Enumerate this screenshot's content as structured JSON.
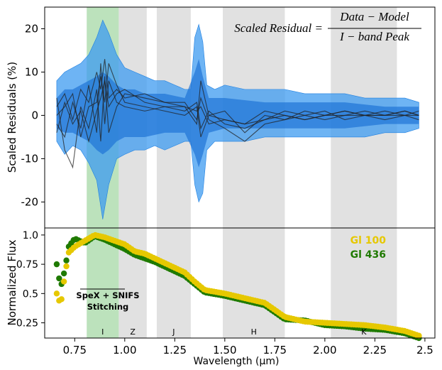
{
  "chart_data": [
    {
      "type": "area",
      "ylabel": "Scaled Residuals (%)",
      "xlim": [
        0.6,
        2.55
      ],
      "ylim": [
        -26,
        25
      ],
      "yticks": [
        20,
        10,
        0,
        -10,
        -20
      ],
      "ytick_labels": [
        "20",
        "10",
        "0",
        "-10",
        "-20"
      ],
      "annotation": {
        "lhs": "Scaled Residual =",
        "numerator": "Data − Model",
        "denominator": "I − band Peak"
      },
      "bands_gray": [
        [
          0.97,
          1.11
        ],
        [
          1.16,
          1.33
        ],
        [
          1.49,
          1.8
        ],
        [
          2.03,
          2.36
        ]
      ],
      "band_green": [
        0.81,
        0.97
      ],
      "envelope_outer": [
        {
          "x": 0.66,
          "lo": -6,
          "hi": 8
        },
        {
          "x": 0.7,
          "lo": -9,
          "hi": 10
        },
        {
          "x": 0.74,
          "lo": -7,
          "hi": 11
        },
        {
          "x": 0.78,
          "lo": -8,
          "hi": 12
        },
        {
          "x": 0.82,
          "lo": -11,
          "hi": 14
        },
        {
          "x": 0.86,
          "lo": -15,
          "hi": 18
        },
        {
          "x": 0.89,
          "lo": -24,
          "hi": 22
        },
        {
          "x": 0.92,
          "lo": -16,
          "hi": 19
        },
        {
          "x": 0.96,
          "lo": -10,
          "hi": 14
        },
        {
          "x": 1.0,
          "lo": -9,
          "hi": 11
        },
        {
          "x": 1.05,
          "lo": -8,
          "hi": 10
        },
        {
          "x": 1.1,
          "lo": -8,
          "hi": 9
        },
        {
          "x": 1.15,
          "lo": -7,
          "hi": 8
        },
        {
          "x": 1.2,
          "lo": -8,
          "hi": 8
        },
        {
          "x": 1.25,
          "lo": -7,
          "hi": 7
        },
        {
          "x": 1.3,
          "lo": -6,
          "hi": 6
        },
        {
          "x": 1.33,
          "lo": -6,
          "hi": 6
        },
        {
          "x": 1.35,
          "lo": -16,
          "hi": 18
        },
        {
          "x": 1.37,
          "lo": -20,
          "hi": 21
        },
        {
          "x": 1.39,
          "lo": -18,
          "hi": 17
        },
        {
          "x": 1.41,
          "lo": -8,
          "hi": 7
        },
        {
          "x": 1.45,
          "lo": -6,
          "hi": 6
        },
        {
          "x": 1.5,
          "lo": -6,
          "hi": 7
        },
        {
          "x": 1.6,
          "lo": -6,
          "hi": 6
        },
        {
          "x": 1.7,
          "lo": -5,
          "hi": 6
        },
        {
          "x": 1.8,
          "lo": -5,
          "hi": 6
        },
        {
          "x": 1.9,
          "lo": -5,
          "hi": 5
        },
        {
          "x": 2.0,
          "lo": -5,
          "hi": 5
        },
        {
          "x": 2.1,
          "lo": -5,
          "hi": 5
        },
        {
          "x": 2.2,
          "lo": -5,
          "hi": 4
        },
        {
          "x": 2.3,
          "lo": -4,
          "hi": 4
        },
        {
          "x": 2.4,
          "lo": -4,
          "hi": 4
        },
        {
          "x": 2.47,
          "lo": -3,
          "hi": 3
        }
      ],
      "envelope_inner": [
        {
          "x": 0.66,
          "lo": -3,
          "hi": 4
        },
        {
          "x": 0.7,
          "lo": -4,
          "hi": 6
        },
        {
          "x": 0.74,
          "lo": -4,
          "hi": 6
        },
        {
          "x": 0.78,
          "lo": -5,
          "hi": 7
        },
        {
          "x": 0.82,
          "lo": -6,
          "hi": 8
        },
        {
          "x": 0.86,
          "lo": -8,
          "hi": 9
        },
        {
          "x": 0.89,
          "lo": -9,
          "hi": 10
        },
        {
          "x": 0.92,
          "lo": -8,
          "hi": 9
        },
        {
          "x": 0.96,
          "lo": -6,
          "hi": 7
        },
        {
          "x": 1.0,
          "lo": -5,
          "hi": 6
        },
        {
          "x": 1.05,
          "lo": -5,
          "hi": 6
        },
        {
          "x": 1.1,
          "lo": -5,
          "hi": 5
        },
        {
          "x": 1.2,
          "lo": -4,
          "hi": 5
        },
        {
          "x": 1.3,
          "lo": -4,
          "hi": 4
        },
        {
          "x": 1.35,
          "lo": -9,
          "hi": 10
        },
        {
          "x": 1.37,
          "lo": -12,
          "hi": 13
        },
        {
          "x": 1.39,
          "lo": -9,
          "hi": 9
        },
        {
          "x": 1.42,
          "lo": -4,
          "hi": 4
        },
        {
          "x": 1.5,
          "lo": -3,
          "hi": 4
        },
        {
          "x": 1.7,
          "lo": -3,
          "hi": 3
        },
        {
          "x": 1.9,
          "lo": -3,
          "hi": 3
        },
        {
          "x": 2.1,
          "lo": -3,
          "hi": 3
        },
        {
          "x": 2.3,
          "lo": -2,
          "hi": 2
        },
        {
          "x": 2.47,
          "lo": -2,
          "hi": 2
        }
      ],
      "residual_lines": [
        {
          "x": [
            0.66,
            0.7,
            0.74,
            0.78,
            0.82,
            0.86,
            0.88,
            0.9,
            0.92,
            0.96,
            1.0,
            1.1,
            1.2,
            1.3,
            1.36,
            1.38,
            1.42,
            1.5,
            1.6,
            1.7,
            1.8,
            1.9,
            2.0,
            2.1,
            2.2,
            2.3,
            2.4,
            2.47
          ],
          "y": [
            2,
            5,
            -1,
            6,
            3,
            10,
            6,
            13,
            4,
            6,
            4,
            5,
            3,
            2,
            -2,
            8,
            0,
            -1,
            -2,
            1,
            0,
            -1,
            0,
            1,
            0,
            0,
            1,
            0
          ]
        },
        {
          "x": [
            0.66,
            0.7,
            0.74,
            0.78,
            0.82,
            0.86,
            0.88,
            0.9,
            0.92,
            0.96,
            1.0,
            1.1,
            1.2,
            1.3,
            1.36,
            1.38,
            1.42,
            1.5,
            1.6,
            1.7,
            1.8,
            1.9,
            2.0,
            2.1,
            2.2,
            2.3,
            2.4,
            2.47
          ],
          "y": [
            -2,
            -5,
            3,
            -3,
            7,
            -4,
            12,
            -2,
            8,
            3,
            2,
            1,
            2,
            1,
            3,
            -3,
            1,
            -2,
            -3,
            -1,
            1,
            0,
            -1,
            0,
            0,
            1,
            0,
            1
          ]
        },
        {
          "x": [
            0.66,
            0.7,
            0.74,
            0.78,
            0.82,
            0.86,
            0.88,
            0.9,
            0.92,
            0.96,
            1.0,
            1.1,
            1.2,
            1.3,
            1.36,
            1.38,
            1.42,
            1.5,
            1.6,
            1.7,
            1.8,
            1.9,
            2.0,
            2.1,
            2.2,
            2.3,
            2.4,
            2.47
          ],
          "y": [
            4,
            -8,
            -12,
            2,
            -3,
            6,
            -6,
            9,
            -4,
            2,
            5,
            4,
            3,
            3,
            -1,
            4,
            -1,
            -3,
            -6,
            -2,
            -1,
            1,
            0,
            0,
            1,
            0,
            0,
            0
          ]
        },
        {
          "x": [
            0.66,
            0.7,
            0.74,
            0.78,
            0.82,
            0.86,
            0.88,
            0.9,
            0.92,
            0.96,
            1.0,
            1.1,
            1.2,
            1.3,
            1.36,
            1.38,
            1.42,
            1.5,
            1.6,
            1.7,
            1.8,
            1.9,
            2.0,
            2.1,
            2.2,
            2.3,
            2.4,
            2.47
          ],
          "y": [
            0,
            2,
            5,
            -5,
            2,
            3,
            9,
            3,
            12,
            7,
            3,
            2,
            1,
            0,
            2,
            -5,
            0,
            1,
            -4,
            0,
            -1,
            0,
            1,
            -1,
            0,
            0,
            1,
            0
          ]
        },
        {
          "x": [
            0.66,
            0.7,
            0.74,
            0.78,
            0.82,
            0.86,
            0.88,
            0.9,
            0.92,
            0.96,
            1.0,
            1.1,
            1.2,
            1.3,
            1.36,
            1.38,
            1.42,
            1.5,
            1.6,
            1.7,
            1.8,
            1.9,
            2.0,
            2.1,
            2.2,
            2.3,
            2.4,
            2.47
          ],
          "y": [
            -4,
            3,
            -2,
            1,
            -6,
            1,
            4,
            8,
            2,
            5,
            6,
            3,
            2,
            2,
            1,
            2,
            -2,
            -1,
            -2,
            -1,
            0,
            -1,
            0,
            1,
            0,
            -1,
            0,
            -1
          ]
        }
      ]
    },
    {
      "type": "scatter",
      "xlabel": "Wavelength (μm)",
      "ylabel": "Normalized Flux",
      "xlim": [
        0.6,
        2.55
      ],
      "ylim": [
        0.12,
        1.06
      ],
      "xticks": [
        0.75,
        1.0,
        1.25,
        1.5,
        1.75,
        2.0,
        2.25,
        2.5
      ],
      "xtick_labels": [
        "0.75",
        "1.00",
        "1.25",
        "1.50",
        "1.75",
        "2.00",
        "2.25",
        "2.5"
      ],
      "yticks": [
        1.0,
        0.75,
        0.5,
        0.25
      ],
      "ytick_labels": [
        "1.0",
        "0.75",
        "0.5",
        "0.25"
      ],
      "band_labels": [
        {
          "x": 0.89,
          "label": "I"
        },
        {
          "x": 1.04,
          "label": "Z"
        },
        {
          "x": 1.245,
          "label": "J"
        },
        {
          "x": 1.645,
          "label": "H"
        },
        {
          "x": 2.195,
          "label": "K"
        }
      ],
      "annotation": [
        "SpeX + SNIFS",
        "Stitching"
      ],
      "series": [
        {
          "name": "Gl 100",
          "color": "#e6c800",
          "x": [
            0.66,
            0.68,
            0.7,
            0.72,
            0.75,
            0.8,
            0.85,
            0.9,
            0.95,
            1.0,
            1.05,
            1.1,
            1.15,
            1.2,
            1.25,
            1.3,
            1.35,
            1.4,
            1.5,
            1.6,
            1.7,
            1.8,
            1.9,
            2.0,
            2.1,
            2.2,
            2.3,
            2.4,
            2.47
          ],
          "y": [
            0.5,
            0.4,
            0.65,
            0.85,
            0.9,
            0.95,
            1.0,
            0.98,
            0.95,
            0.92,
            0.86,
            0.84,
            0.8,
            0.76,
            0.72,
            0.68,
            0.6,
            0.53,
            0.5,
            0.46,
            0.42,
            0.3,
            0.26,
            0.25,
            0.24,
            0.23,
            0.21,
            0.18,
            0.14
          ]
        },
        {
          "name": "Gl 436",
          "color": "#1f7a00",
          "x": [
            0.66,
            0.68,
            0.7,
            0.72,
            0.75,
            0.8,
            0.85,
            0.9,
            0.95,
            1.0,
            1.05,
            1.1,
            1.15,
            1.2,
            1.25,
            1.3,
            1.35,
            1.4,
            1.5,
            1.6,
            1.7,
            1.8,
            1.9,
            2.0,
            2.1,
            2.2,
            2.3,
            2.4,
            2.47
          ],
          "y": [
            0.75,
            0.55,
            0.7,
            0.9,
            0.97,
            0.93,
            0.99,
            0.96,
            0.92,
            0.88,
            0.83,
            0.8,
            0.77,
            0.73,
            0.69,
            0.65,
            0.58,
            0.51,
            0.48,
            0.44,
            0.4,
            0.28,
            0.27,
            0.23,
            0.22,
            0.2,
            0.19,
            0.16,
            0.12
          ]
        }
      ]
    }
  ]
}
